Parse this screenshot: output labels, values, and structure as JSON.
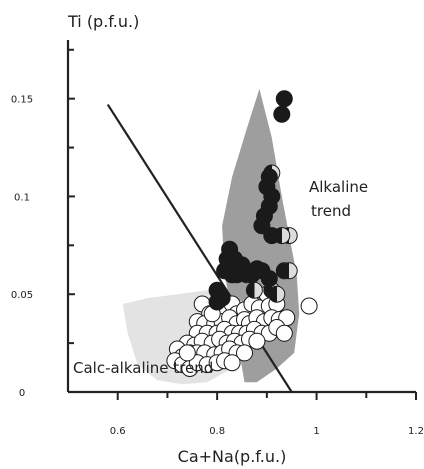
{
  "chart_data": {
    "type": "scatter",
    "title": "",
    "xlabel": "Ca+Na(p.f.u.)",
    "ylabel": "Ti (p.f.u.)",
    "xlim": [
      0.5,
      1.2
    ],
    "ylim": [
      0,
      0.18
    ],
    "x_ticks": [
      0.6,
      0.8,
      1,
      1.2
    ],
    "x_tick_labels": [
      "0.6",
      "0.8",
      "1",
      "1.2"
    ],
    "y_ticks": [
      0,
      0.05,
      0.1,
      0.15
    ],
    "y_tick_labels": [
      "0",
      "0.05",
      "0.1",
      "0.15"
    ],
    "y_minor_ticks": [
      0.025,
      0.075,
      0.125,
      0.175
    ],
    "x_minor_ticks": [
      0.7,
      0.9,
      1.1
    ],
    "grid": false,
    "colors": {
      "alkaline_field": "#9e9e9e",
      "calc_alkaline_field": "#e3e3e3",
      "filled_marker": "#1a1a1a",
      "open_marker": "#ffffff",
      "half_marker_light": "#dddddd",
      "line": "#222222"
    },
    "annotations": [
      {
        "name": "alkaline-trend-label",
        "lines": [
          "Alkaline",
          "trend"
        ]
      },
      {
        "name": "calc-alkaline-trend-label",
        "lines": [
          "Calc-alkaline trend"
        ]
      }
    ],
    "regions": [
      {
        "name": "alkaline-trend-field",
        "points": [
          [
            0.855,
            0.005
          ],
          [
            0.835,
            0.035
          ],
          [
            0.815,
            0.06
          ],
          [
            0.81,
            0.085
          ],
          [
            0.83,
            0.11
          ],
          [
            0.86,
            0.135
          ],
          [
            0.885,
            0.155
          ],
          [
            0.91,
            0.13
          ],
          [
            0.93,
            0.1
          ],
          [
            0.945,
            0.08
          ],
          [
            0.96,
            0.06
          ],
          [
            0.965,
            0.04
          ],
          [
            0.955,
            0.02
          ],
          [
            0.92,
            0.012
          ],
          [
            0.88,
            0.005
          ]
        ]
      },
      {
        "name": "calc-alkaline-trend-field",
        "points": [
          [
            0.61,
            0.045
          ],
          [
            0.62,
            0.03
          ],
          [
            0.64,
            0.014
          ],
          [
            0.68,
            0.006
          ],
          [
            0.73,
            0.004
          ],
          [
            0.78,
            0.005
          ],
          [
            0.83,
            0.012
          ],
          [
            0.86,
            0.022
          ],
          [
            0.875,
            0.035
          ],
          [
            0.86,
            0.045
          ],
          [
            0.82,
            0.05
          ],
          [
            0.78,
            0.052
          ],
          [
            0.72,
            0.05
          ],
          [
            0.66,
            0.048
          ]
        ]
      }
    ],
    "trend_line": {
      "x": [
        0.58,
        0.95
      ],
      "y": [
        0.147,
        0
      ]
    },
    "series": [
      {
        "marker": "filled",
        "points": [
          [
            0.935,
            0.15
          ],
          [
            0.93,
            0.142
          ],
          [
            0.905,
            0.11
          ],
          [
            0.9,
            0.105
          ],
          [
            0.91,
            0.1
          ],
          [
            0.905,
            0.095
          ],
          [
            0.895,
            0.09
          ],
          [
            0.89,
            0.085
          ],
          [
            0.91,
            0.08
          ],
          [
            0.825,
            0.073
          ],
          [
            0.835,
            0.068
          ],
          [
            0.82,
            0.068
          ],
          [
            0.85,
            0.065
          ],
          [
            0.815,
            0.062
          ],
          [
            0.83,
            0.06
          ],
          [
            0.84,
            0.06
          ],
          [
            0.87,
            0.06
          ],
          [
            0.88,
            0.063
          ],
          [
            0.89,
            0.062
          ],
          [
            0.905,
            0.058
          ],
          [
            0.8,
            0.052
          ],
          [
            0.81,
            0.048
          ],
          [
            0.8,
            0.046
          ]
        ]
      },
      {
        "marker": "half",
        "points": [
          [
            0.91,
            0.112
          ],
          [
            0.945,
            0.08
          ],
          [
            0.93,
            0.08
          ],
          [
            0.935,
            0.062
          ],
          [
            0.945,
            0.062
          ],
          [
            0.86,
            0.06
          ],
          [
            0.875,
            0.052
          ],
          [
            0.91,
            0.052
          ],
          [
            0.92,
            0.05
          ]
        ]
      },
      {
        "marker": "open",
        "points": [
          [
            0.77,
            0.045
          ],
          [
            0.785,
            0.04
          ],
          [
            0.8,
            0.042
          ],
          [
            0.815,
            0.042
          ],
          [
            0.83,
            0.045
          ],
          [
            0.84,
            0.04
          ],
          [
            0.855,
            0.042
          ],
          [
            0.87,
            0.045
          ],
          [
            0.885,
            0.043
          ],
          [
            0.9,
            0.05
          ],
          [
            0.905,
            0.044
          ],
          [
            0.92,
            0.045
          ],
          [
            0.985,
            0.044
          ],
          [
            0.76,
            0.036
          ],
          [
            0.775,
            0.035
          ],
          [
            0.795,
            0.035
          ],
          [
            0.81,
            0.036
          ],
          [
            0.825,
            0.038
          ],
          [
            0.84,
            0.035
          ],
          [
            0.855,
            0.037
          ],
          [
            0.865,
            0.035
          ],
          [
            0.88,
            0.038
          ],
          [
            0.895,
            0.036
          ],
          [
            0.91,
            0.038
          ],
          [
            0.925,
            0.037
          ],
          [
            0.94,
            0.038
          ],
          [
            0.76,
            0.03
          ],
          [
            0.78,
            0.03
          ],
          [
            0.8,
            0.03
          ],
          [
            0.815,
            0.032
          ],
          [
            0.83,
            0.03
          ],
          [
            0.845,
            0.03
          ],
          [
            0.86,
            0.03
          ],
          [
            0.875,
            0.032
          ],
          [
            0.89,
            0.03
          ],
          [
            0.905,
            0.03
          ],
          [
            0.92,
            0.033
          ],
          [
            0.935,
            0.03
          ],
          [
            0.74,
            0.025
          ],
          [
            0.755,
            0.024
          ],
          [
            0.77,
            0.026
          ],
          [
            0.79,
            0.025
          ],
          [
            0.805,
            0.027
          ],
          [
            0.82,
            0.025
          ],
          [
            0.835,
            0.026
          ],
          [
            0.85,
            0.025
          ],
          [
            0.865,
            0.027
          ],
          [
            0.88,
            0.026
          ],
          [
            0.72,
            0.022
          ],
          [
            0.73,
            0.018
          ],
          [
            0.745,
            0.02
          ],
          [
            0.76,
            0.02
          ],
          [
            0.775,
            0.02
          ],
          [
            0.795,
            0.019
          ],
          [
            0.81,
            0.02
          ],
          [
            0.825,
            0.022
          ],
          [
            0.84,
            0.02
          ],
          [
            0.855,
            0.02
          ],
          [
            0.715,
            0.016
          ],
          [
            0.73,
            0.014
          ],
          [
            0.745,
            0.012
          ],
          [
            0.76,
            0.015
          ],
          [
            0.78,
            0.014
          ],
          [
            0.8,
            0.015
          ],
          [
            0.815,
            0.016
          ],
          [
            0.83,
            0.015
          ],
          [
            0.74,
            0.02
          ],
          [
            0.79,
            0.04
          ]
        ]
      }
    ]
  }
}
